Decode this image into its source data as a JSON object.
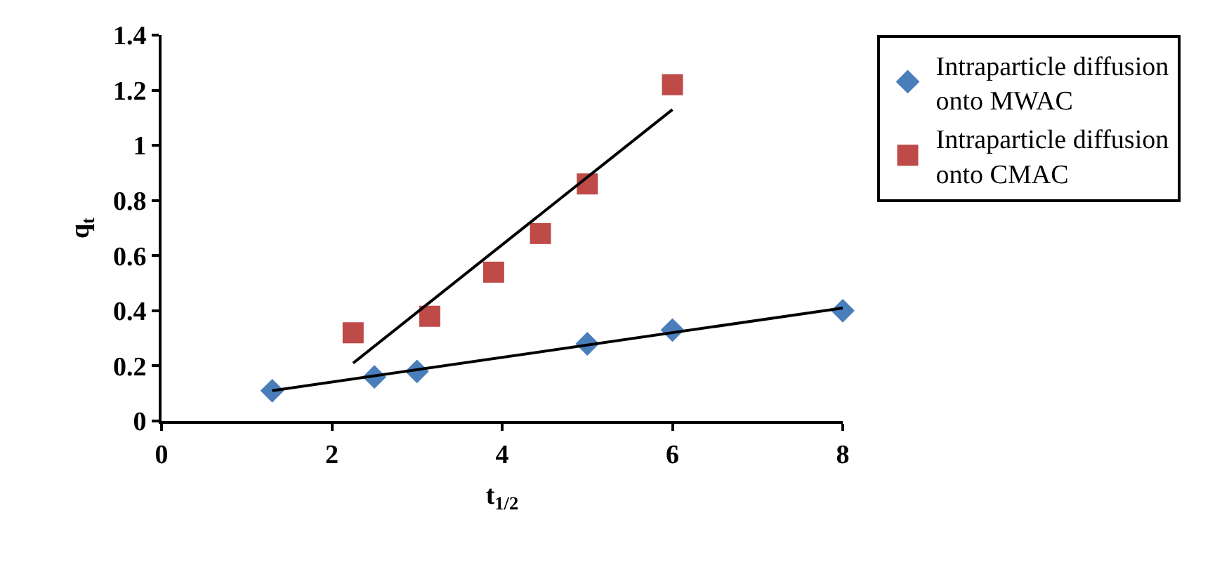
{
  "chart_data": {
    "type": "scatter",
    "xlabel": "t$_{1/2}$",
    "ylabel": "q$_{t}$",
    "xlim": [
      0,
      8
    ],
    "xticks": [
      0,
      2,
      4,
      6,
      8
    ],
    "ylim": [
      0,
      1.4
    ],
    "yticks": [
      0,
      0.2,
      0.4,
      0.6,
      0.8,
      1,
      1.2,
      1.4
    ],
    "legend": "right",
    "series": [
      {
        "name": "Intraparticle diffusion onto MWAC",
        "color": "#4a7ebb",
        "marker": "diamond",
        "x": [
          1.3,
          2.5,
          3,
          5,
          6,
          8
        ],
        "values": [
          0.11,
          0.16,
          0.18,
          0.28,
          0.33,
          0.4
        ]
      },
      {
        "name": "Intraparticle diffusion onto CMAC",
        "color": "#be4b48",
        "marker": "square",
        "x": [
          2.25,
          3.15,
          3.9,
          4.45,
          5,
          6
        ],
        "values": [
          0.32,
          0.38,
          0.54,
          0.68,
          0.86,
          1.22
        ]
      },
      {
        "type": "line",
        "color": "#000000",
        "marker": "none",
        "line_style": "solid",
        "x": [
          1.3,
          8
        ],
        "values": [
          0.11,
          0.41
        ]
      },
      {
        "type": "line",
        "color": "#000000",
        "marker": "none",
        "line_style": "solid",
        "x": [
          2.25,
          6
        ],
        "values": [
          0.21,
          1.13
        ]
      }
    ]
  }
}
